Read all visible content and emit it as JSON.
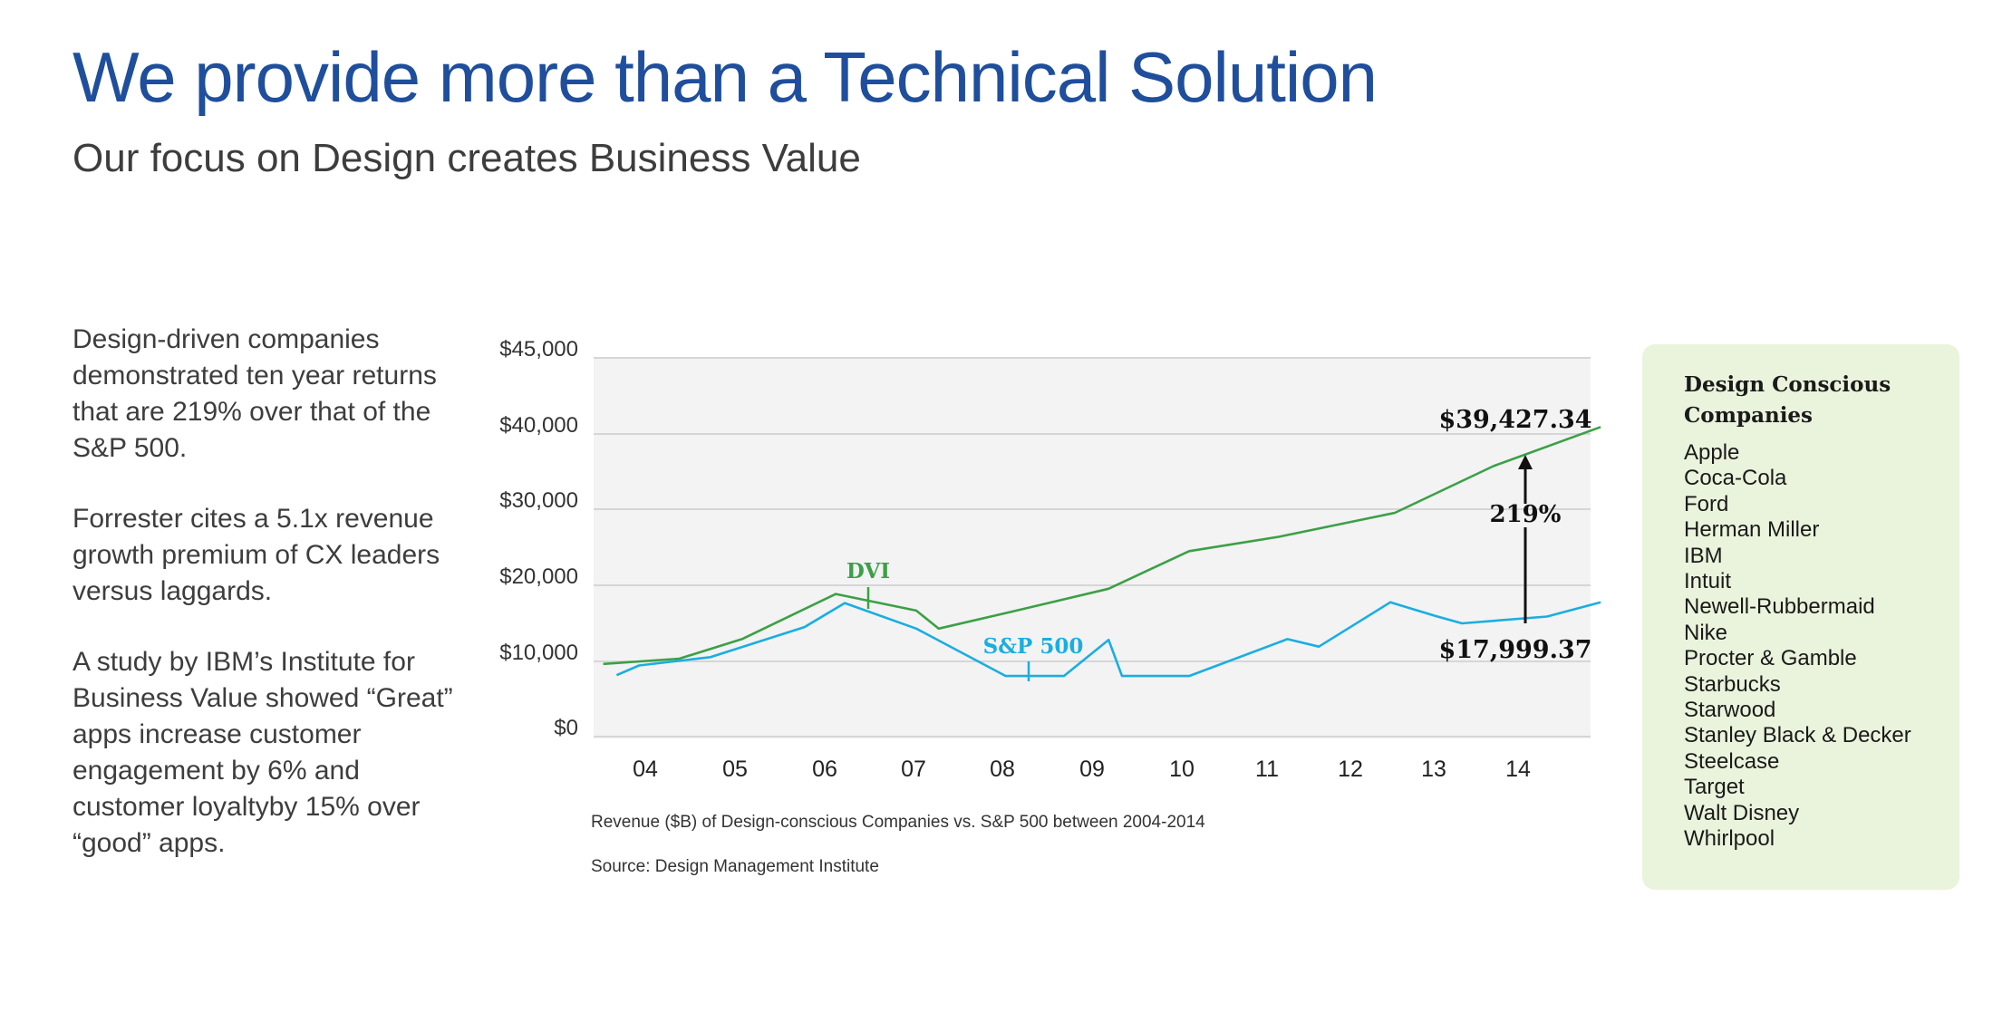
{
  "header": {
    "title": "We provide more than a Technical Solution",
    "subtitle": "Our focus on Design creates Business Value"
  },
  "left_text": [
    "Design-driven companies demonstrated ten year returns that are 219% over that of the S&P 500.",
    "Forrester cites a 5.1x revenue growth premium of CX leaders versus laggards.",
    "A study by IBM’s Institute for Business Value showed “Great” apps increase customer engagement by 6% and customer loyaltyby 15% over “good” apps."
  ],
  "chart_data": {
    "type": "line",
    "x_ticks": [
      "04",
      "05",
      "06",
      "07",
      "08",
      "09",
      "10",
      "11",
      "12",
      "13",
      "14"
    ],
    "y_ticks": [
      "$45,000",
      "$40,000",
      "$30,000",
      "$20,000",
      "$10,000",
      "$0"
    ],
    "series": [
      {
        "name": "DVI",
        "color": "#3ca046",
        "points": [
          [
            2003.55,
            8700
          ],
          [
            2004.4,
            9400
          ],
          [
            2005.1,
            12000
          ],
          [
            2006.15,
            18000
          ],
          [
            2007.05,
            15800
          ],
          [
            2007.3,
            13400
          ],
          [
            2008.1,
            15600
          ],
          [
            2009.2,
            18700
          ],
          [
            2010.1,
            23700
          ],
          [
            2011.1,
            25600
          ],
          [
            2012.4,
            28800
          ],
          [
            2013.5,
            35000
          ],
          [
            2014.7,
            40200
          ]
        ]
      },
      {
        "name": "S&P 500",
        "color": "#1aaee0",
        "points": [
          [
            2003.7,
            7200
          ],
          [
            2003.95,
            8500
          ],
          [
            2004.75,
            9600
          ],
          [
            2005.8,
            13600
          ],
          [
            2006.25,
            16800
          ],
          [
            2007.05,
            13400
          ],
          [
            2008.05,
            7100
          ],
          [
            2008.7,
            7100
          ],
          [
            2009.2,
            11900
          ],
          [
            2009.35,
            7100
          ],
          [
            2010.1,
            7100
          ],
          [
            2011.2,
            12000
          ],
          [
            2011.55,
            11000
          ],
          [
            2012.35,
            16900
          ],
          [
            2012.85,
            15100
          ],
          [
            2013.15,
            14100
          ],
          [
            2014.1,
            15000
          ],
          [
            2014.7,
            16900
          ]
        ]
      }
    ],
    "annotations": {
      "top_value": "$39,427.34",
      "bottom_value": "$17,999.37",
      "difference": "219%",
      "dvi_label": "DVI",
      "sp_label": "S&P 500"
    },
    "caption": "Revenue ($B) of Design-conscious Companies vs. S&P 500 between 2004-2014",
    "source": "Source: Design Management Institute"
  },
  "panel": {
    "title": "Design Conscious Companies",
    "companies": [
      "Apple",
      "Coca-Cola",
      "Ford",
      "Herman Miller",
      "IBM",
      "Intuit",
      "Newell-Rubbermaid",
      "Nike",
      "Procter & Gamble",
      "Starbucks",
      "Starwood",
      "Stanley Black & Decker",
      "Steelcase",
      "Target",
      "Walt Disney",
      "Whirlpool"
    ]
  }
}
